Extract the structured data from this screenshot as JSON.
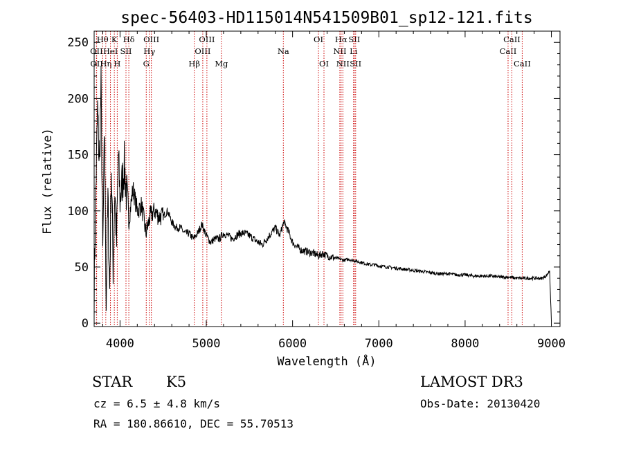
{
  "chart_data": {
    "type": "line",
    "title": "spec-56403-HD115014N541509B01_sp12-121.fits",
    "xlabel": "Wavelength (Å)",
    "ylabel": "Flux (relative)",
    "xlim": [
      3700,
      9100
    ],
    "ylim": [
      -3,
      260
    ],
    "xticks": [
      4000,
      5000,
      6000,
      7000,
      8000,
      9000
    ],
    "yticks": [
      0,
      50,
      100,
      150,
      200,
      250
    ],
    "grid": false,
    "line_color": "#000000",
    "marker_color": "#cc0000",
    "series": [
      {
        "name": "flux",
        "x": [
          3700,
          3720,
          3740,
          3760,
          3780,
          3800,
          3820,
          3840,
          3860,
          3880,
          3900,
          3920,
          3940,
          3960,
          3980,
          4000,
          4050,
          4100,
          4150,
          4200,
          4250,
          4300,
          4350,
          4400,
          4450,
          4500,
          4550,
          4600,
          4650,
          4700,
          4750,
          4800,
          4850,
          4900,
          4950,
          5000,
          5050,
          5100,
          5150,
          5200,
          5250,
          5300,
          5350,
          5400,
          5450,
          5500,
          5550,
          5600,
          5650,
          5700,
          5750,
          5800,
          5850,
          5900,
          5950,
          6000,
          6050,
          6100,
          6150,
          6200,
          6250,
          6300,
          6350,
          6400,
          6450,
          6500,
          6550,
          6600,
          6650,
          6700,
          6750,
          6800,
          6850,
          6900,
          6950,
          7000,
          7100,
          7200,
          7300,
          7400,
          7500,
          7600,
          7700,
          7800,
          7900,
          8000,
          8100,
          8200,
          8300,
          8400,
          8500,
          8600,
          8700,
          8800,
          8900,
          8950,
          8980,
          9000
        ],
        "y": [
          30,
          120,
          190,
          140,
          210,
          60,
          170,
          20,
          110,
          30,
          140,
          50,
          120,
          70,
          150,
          110,
          140,
          90,
          120,
          100,
          105,
          80,
          95,
          100,
          95,
          95,
          100,
          90,
          85,
          85,
          80,
          80,
          75,
          80,
          88,
          78,
          72,
          75,
          75,
          80,
          78,
          75,
          78,
          80,
          80,
          78,
          75,
          72,
          70,
          75,
          80,
          85,
          78,
          90,
          82,
          72,
          68,
          65,
          64,
          63,
          62,
          60,
          62,
          60,
          59,
          58,
          57,
          56,
          57,
          56,
          55,
          54,
          53,
          52,
          52,
          51,
          50,
          49,
          48,
          47,
          46,
          45,
          44,
          44,
          43,
          43,
          42,
          42,
          42,
          41,
          41,
          40,
          40,
          40,
          40,
          43,
          47,
          2
        ]
      }
    ],
    "line_markers": [
      {
        "label": "Hθ",
        "x": 3798,
        "row": 1
      },
      {
        "label": "OII",
        "x": 3727,
        "row": 2
      },
      {
        "label": "OII",
        "x": 3729,
        "row": 3
      },
      {
        "label": "Hη",
        "x": 3835,
        "row": 3
      },
      {
        "label": "HeI",
        "x": 3889,
        "row": 2
      },
      {
        "label": "K",
        "x": 3934,
        "row": 1
      },
      {
        "label": "H",
        "x": 3968,
        "row": 3
      },
      {
        "label": "SII",
        "x": 4069,
        "row": 2
      },
      {
        "label": "Hδ",
        "x": 4102,
        "row": 1
      },
      {
        "label": "G",
        "x": 4304,
        "row": 3
      },
      {
        "label": "Hγ",
        "x": 4340,
        "row": 2
      },
      {
        "label": "OIII",
        "x": 4363,
        "row": 1
      },
      {
        "label": "Hβ",
        "x": 4861,
        "row": 3
      },
      {
        "label": "OIII",
        "x": 4959,
        "row": 2
      },
      {
        "label": "OIII",
        "x": 5007,
        "row": 1
      },
      {
        "label": "Mg",
        "x": 5175,
        "row": 3
      },
      {
        "label": "Na",
        "x": 5893,
        "row": 2
      },
      {
        "label": "OI",
        "x": 6300,
        "row": 1
      },
      {
        "label": "OI",
        "x": 6364,
        "row": 3
      },
      {
        "label": "NII",
        "x": 6548,
        "row": 2
      },
      {
        "label": "Hα",
        "x": 6563,
        "row": 1
      },
      {
        "label": "NII",
        "x": 6583,
        "row": 3
      },
      {
        "label": "Li",
        "x": 6707,
        "row": 2
      },
      {
        "label": "SII",
        "x": 6716,
        "row": 1
      },
      {
        "label": "SII",
        "x": 6731,
        "row": 3
      },
      {
        "label": "CaII",
        "x": 8498,
        "row": 2
      },
      {
        "label": "CaII",
        "x": 8542,
        "row": 1
      },
      {
        "label": "CaII",
        "x": 8662,
        "row": 3
      }
    ]
  },
  "info": {
    "class_label": "STAR",
    "subclass": "K5",
    "survey": "LAMOST DR3",
    "redshift": "cz = 6.5 ± 4.8 km/s",
    "obs_date": "Obs-Date: 20130420",
    "coords": "RA = 180.86610, DEC =  55.70513"
  }
}
